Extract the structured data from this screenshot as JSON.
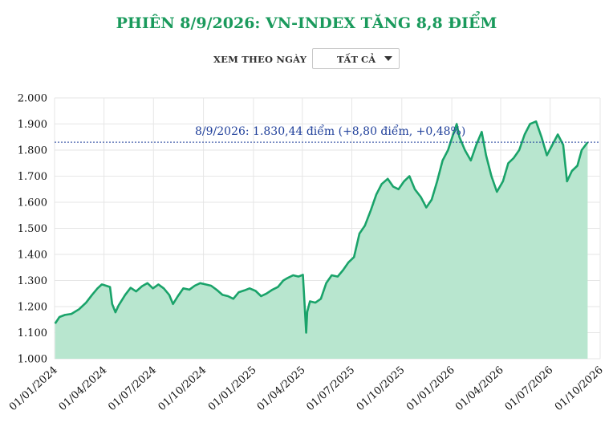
{
  "header": {
    "title": "PHIÊN 8/9/2026: VN-INDEX TĂNG 8,8 ĐIỂM"
  },
  "filter": {
    "label": "XEM THEO NGÀY",
    "selected": "TẤT CẢ"
  },
  "colors": {
    "title": "#1a9a5c",
    "line": "#1aa36a",
    "area": "#b8e6cf",
    "reference_line": "#1f3f9a",
    "annotation": "#1f3f9a"
  },
  "chart_data": {
    "type": "area",
    "ylim": [
      1000,
      2000
    ],
    "y_ticks": [
      "1.000",
      "1.100",
      "1.200",
      "1.300",
      "1.400",
      "1.500",
      "1.600",
      "1.700",
      "1.800",
      "1.900",
      "2.000"
    ],
    "x_ticks": [
      "01/01/2024",
      "01/04/2024",
      "01/07/2024",
      "01/10/2024",
      "01/01/2025",
      "01/04/2025",
      "01/07/2025",
      "01/10/2025",
      "01/01/2026",
      "01/04/2026",
      "01/07/2026",
      "01/10/2026"
    ],
    "grid": true,
    "reference_value": 1830.44,
    "annotation": "8/9/2026: 1.830,44 điểm (+8,80 điểm, +0,48%)",
    "series": [
      {
        "points": [
          [
            "2024-01-02",
            1135
          ],
          [
            "2024-01-10",
            1160
          ],
          [
            "2024-01-20",
            1168
          ],
          [
            "2024-02-01",
            1172
          ],
          [
            "2024-02-15",
            1190
          ],
          [
            "2024-02-28",
            1215
          ],
          [
            "2024-03-10",
            1245
          ],
          [
            "2024-03-20",
            1270
          ],
          [
            "2024-03-28",
            1285
          ],
          [
            "2024-04-05",
            1280
          ],
          [
            "2024-04-12",
            1275
          ],
          [
            "2024-04-16",
            1210
          ],
          [
            "2024-04-22",
            1178
          ],
          [
            "2024-04-28",
            1205
          ],
          [
            "2024-05-10",
            1245
          ],
          [
            "2024-05-20",
            1272
          ],
          [
            "2024-05-30",
            1258
          ],
          [
            "2024-06-10",
            1278
          ],
          [
            "2024-06-20",
            1290
          ],
          [
            "2024-06-30",
            1270
          ],
          [
            "2024-07-10",
            1285
          ],
          [
            "2024-07-20",
            1270
          ],
          [
            "2024-07-30",
            1245
          ],
          [
            "2024-08-06",
            1210
          ],
          [
            "2024-08-15",
            1240
          ],
          [
            "2024-08-25",
            1270
          ],
          [
            "2024-09-05",
            1265
          ],
          [
            "2024-09-15",
            1280
          ],
          [
            "2024-09-25",
            1290
          ],
          [
            "2024-10-05",
            1285
          ],
          [
            "2024-10-15",
            1280
          ],
          [
            "2024-10-25",
            1265
          ],
          [
            "2024-11-05",
            1245
          ],
          [
            "2024-11-15",
            1240
          ],
          [
            "2024-11-25",
            1230
          ],
          [
            "2024-12-05",
            1255
          ],
          [
            "2024-12-15",
            1262
          ],
          [
            "2024-12-25",
            1270
          ],
          [
            "2025-01-05",
            1260
          ],
          [
            "2025-01-15",
            1240
          ],
          [
            "2025-01-25",
            1250
          ],
          [
            "2025-02-05",
            1265
          ],
          [
            "2025-02-15",
            1275
          ],
          [
            "2025-02-25",
            1300
          ],
          [
            "2025-03-05",
            1310
          ],
          [
            "2025-03-15",
            1320
          ],
          [
            "2025-03-25",
            1315
          ],
          [
            "2025-04-02",
            1322
          ],
          [
            "2025-04-05",
            1210
          ],
          [
            "2025-04-08",
            1100
          ],
          [
            "2025-04-10",
            1180
          ],
          [
            "2025-04-15",
            1220
          ],
          [
            "2025-04-25",
            1215
          ],
          [
            "2025-05-05",
            1230
          ],
          [
            "2025-05-15",
            1290
          ],
          [
            "2025-05-25",
            1320
          ],
          [
            "2025-06-05",
            1315
          ],
          [
            "2025-06-15",
            1340
          ],
          [
            "2025-06-25",
            1370
          ],
          [
            "2025-07-05",
            1390
          ],
          [
            "2025-07-15",
            1480
          ],
          [
            "2025-07-25",
            1510
          ],
          [
            "2025-08-05",
            1570
          ],
          [
            "2025-08-15",
            1630
          ],
          [
            "2025-08-25",
            1670
          ],
          [
            "2025-09-05",
            1690
          ],
          [
            "2025-09-15",
            1660
          ],
          [
            "2025-09-25",
            1650
          ],
          [
            "2025-10-05",
            1680
          ],
          [
            "2025-10-15",
            1700
          ],
          [
            "2025-10-25",
            1650
          ],
          [
            "2025-11-05",
            1620
          ],
          [
            "2025-11-15",
            1580
          ],
          [
            "2025-11-25",
            1610
          ],
          [
            "2025-12-05",
            1680
          ],
          [
            "2025-12-15",
            1760
          ],
          [
            "2025-12-25",
            1800
          ],
          [
            "2026-01-05",
            1870
          ],
          [
            "2026-01-10",
            1900
          ],
          [
            "2026-01-15",
            1850
          ],
          [
            "2026-01-25",
            1800
          ],
          [
            "2026-02-05",
            1760
          ],
          [
            "2026-02-15",
            1820
          ],
          [
            "2026-02-25",
            1870
          ],
          [
            "2026-03-05",
            1780
          ],
          [
            "2026-03-15",
            1700
          ],
          [
            "2026-03-25",
            1640
          ],
          [
            "2026-04-05",
            1680
          ],
          [
            "2026-04-15",
            1750
          ],
          [
            "2026-04-25",
            1770
          ],
          [
            "2026-05-05",
            1800
          ],
          [
            "2026-05-15",
            1860
          ],
          [
            "2026-05-25",
            1900
          ],
          [
            "2026-06-05",
            1910
          ],
          [
            "2026-06-15",
            1850
          ],
          [
            "2026-06-25",
            1780
          ],
          [
            "2026-07-05",
            1820
          ],
          [
            "2026-07-15",
            1860
          ],
          [
            "2026-07-25",
            1820
          ],
          [
            "2026-08-01",
            1680
          ],
          [
            "2026-08-10",
            1720
          ],
          [
            "2026-08-20",
            1740
          ],
          [
            "2026-08-28",
            1800
          ],
          [
            "2026-09-05",
            1822
          ],
          [
            "2026-09-08",
            1830
          ]
        ]
      }
    ]
  }
}
